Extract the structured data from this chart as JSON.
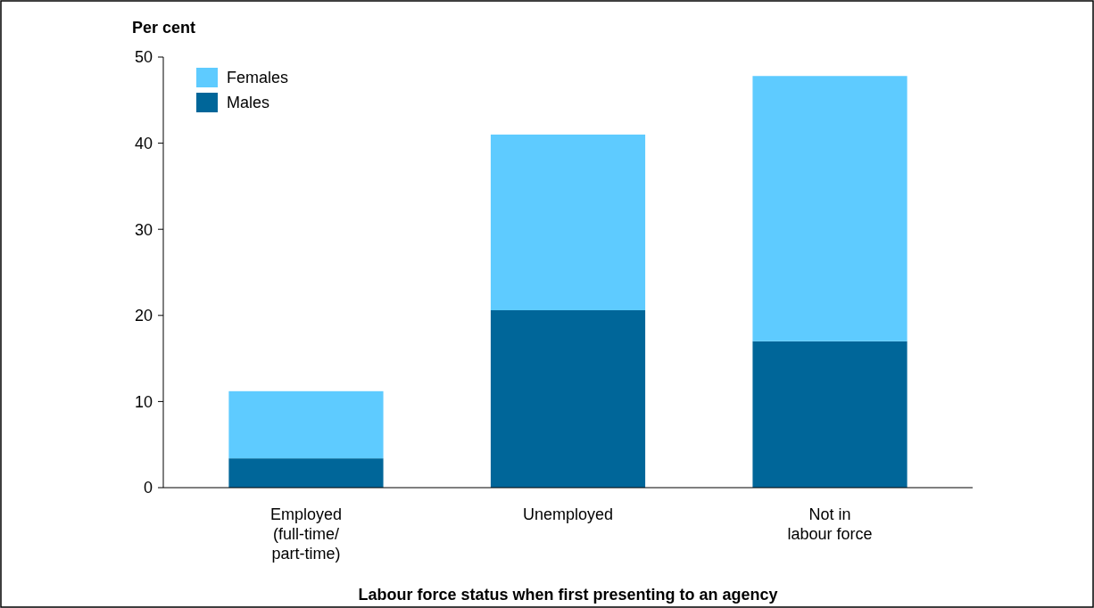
{
  "chart_data": {
    "type": "bar",
    "stacked": true,
    "ylabel": "Per cent",
    "xlabel": "Labour force status when first presenting to an agency",
    "categories": [
      "Employed\n(full-time/\npart-time)",
      "Unemployed",
      "Not in\nlabour force"
    ],
    "series": [
      {
        "name": "Males",
        "color": "#006699",
        "values": [
          3.4,
          20.6,
          17.0
        ]
      },
      {
        "name": "Females",
        "color": "#5ecbff",
        "values": [
          7.8,
          20.4,
          30.8
        ]
      }
    ],
    "ylim": [
      0,
      50
    ],
    "yticks": [
      0,
      10,
      20,
      30,
      40,
      50
    ],
    "grid": false,
    "legend": "top left"
  }
}
